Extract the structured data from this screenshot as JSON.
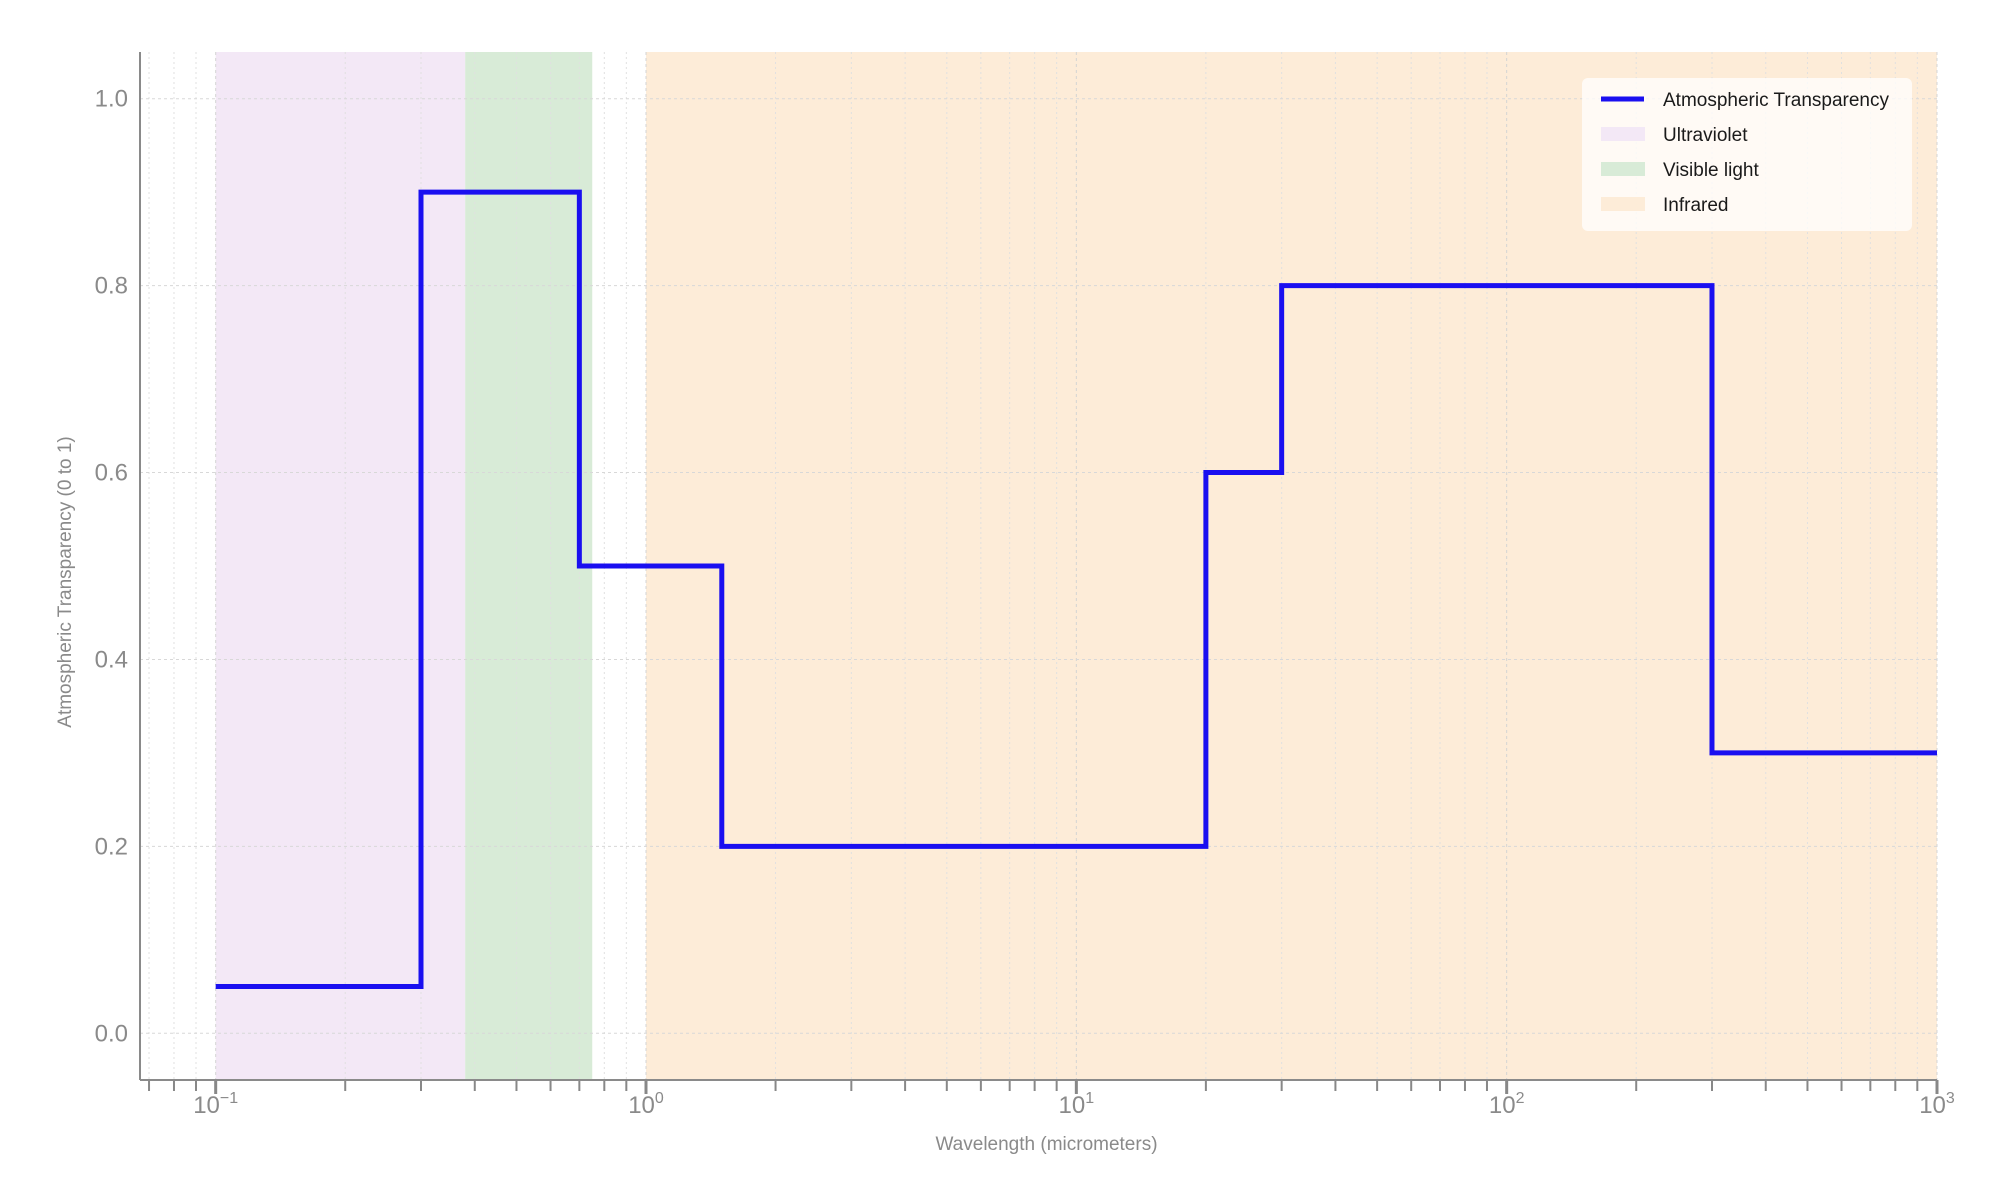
{
  "chart_data": {
    "type": "line",
    "title": "",
    "xlabel": "Wavelength (micrometers)",
    "ylabel": "Atmospheric Transparency (0 to 1)",
    "xscale": "log",
    "xlim": [
      0.0667,
      1000
    ],
    "ylim": [
      -0.05,
      1.05
    ],
    "grid": true,
    "legend_position": "top-right",
    "xticks": [
      {
        "value": 0.1,
        "base": "10",
        "exp": "−1"
      },
      {
        "value": 1,
        "base": "10",
        "exp": "0"
      },
      {
        "value": 10,
        "base": "10",
        "exp": "1"
      },
      {
        "value": 100,
        "base": "10",
        "exp": "2"
      },
      {
        "value": 1000,
        "base": "10",
        "exp": "3"
      }
    ],
    "yticks": [
      {
        "value": 0.0,
        "label": "0.0"
      },
      {
        "value": 0.2,
        "label": "0.2"
      },
      {
        "value": 0.4,
        "label": "0.4"
      },
      {
        "value": 0.6,
        "label": "0.6"
      },
      {
        "value": 0.8,
        "label": "0.8"
      },
      {
        "value": 1.0,
        "label": "1.0"
      }
    ],
    "bands": [
      {
        "name": "Ultraviolet",
        "x_range": [
          0.1,
          0.38
        ],
        "color": "#f3e8f6"
      },
      {
        "name": "Visible light",
        "x_range": [
          0.38,
          0.75
        ],
        "color": "#d8ebd7"
      },
      {
        "name": "Infrared",
        "x_range": [
          1,
          1000
        ],
        "color": "#fdecd8"
      }
    ],
    "series": [
      {
        "name": "Atmospheric Transparency",
        "color": "#1a0ff0",
        "x": [
          0.1,
          0.3,
          0.3,
          0.7,
          0.7,
          1.5,
          1.5,
          20,
          20,
          30,
          30,
          300,
          300,
          1000
        ],
        "y": [
          0.05,
          0.05,
          0.9,
          0.9,
          0.5,
          0.5,
          0.2,
          0.2,
          0.6,
          0.6,
          0.8,
          0.8,
          0.3,
          0.3
        ]
      }
    ]
  }
}
